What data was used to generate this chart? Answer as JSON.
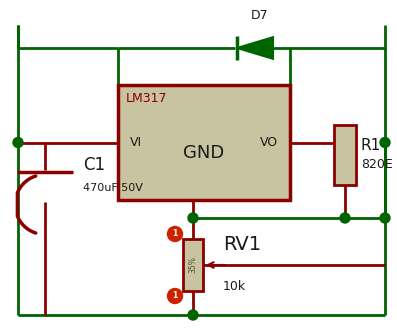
{
  "bg_color": "#ffffff",
  "wire_green": "#006400",
  "wire_red": "#8B0000",
  "ic_fill": "#c8c3a0",
  "ic_border": "#8B0000",
  "text_dark": "#1a1a1a",
  "text_red": "#8B0000",
  "junction_green": "#006400",
  "diode_label": "D7",
  "ic_label": "LM317",
  "ic_vi": "VI",
  "ic_vo": "VO",
  "ic_gnd": "GND",
  "r1_label": "R1",
  "r1_value": "820E",
  "rv1_label": "RV1",
  "rv1_value": "10k",
  "rv1_pct": "35%",
  "c1_label": "C1",
  "c1_value": "470uF 50V",
  "figsize": [
    3.97,
    3.32
  ],
  "dpi": 100
}
